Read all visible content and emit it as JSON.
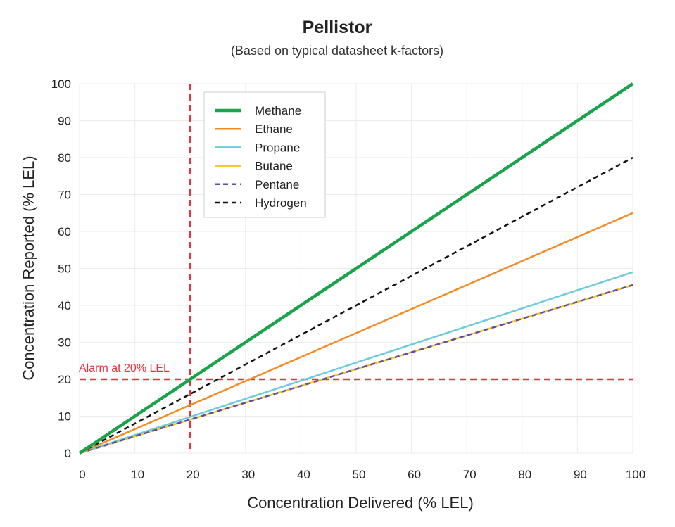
{
  "chart_data": {
    "type": "line",
    "title": "Pellistor",
    "subtitle": "(Based on typical datasheet k-factors)",
    "xlabel": "Concentration Delivered (% LEL)",
    "ylabel": "Concentration Reported (% LEL)",
    "xlim": [
      0,
      100
    ],
    "ylim": [
      0,
      100
    ],
    "xticks": [
      0,
      10,
      20,
      30,
      40,
      50,
      60,
      70,
      80,
      90,
      100
    ],
    "yticks": [
      0,
      10,
      20,
      30,
      40,
      50,
      60,
      70,
      80,
      90,
      100
    ],
    "grid": true,
    "legend_position": "top-left",
    "series": [
      {
        "name": "Methane",
        "x": [
          0,
          100
        ],
        "y": [
          0,
          100
        ],
        "color": "#1aa34a",
        "style": "solid"
      },
      {
        "name": "Ethane",
        "x": [
          0,
          100
        ],
        "y": [
          0,
          65
        ],
        "color": "#f28c28",
        "style": "solid"
      },
      {
        "name": "Propane",
        "x": [
          0,
          100
        ],
        "y": [
          0,
          49
        ],
        "color": "#6ecbd9",
        "style": "solid"
      },
      {
        "name": "Butane",
        "x": [
          0,
          100
        ],
        "y": [
          0,
          45.5
        ],
        "color": "#f5c518",
        "style": "solid"
      },
      {
        "name": "Pentane",
        "x": [
          0,
          100
        ],
        "y": [
          0,
          45.5
        ],
        "color": "#5b4ea6",
        "style": "dashed"
      },
      {
        "name": "Hydrogen",
        "x": [
          0,
          100
        ],
        "y": [
          0,
          80
        ],
        "color": "#111111",
        "style": "dashed"
      }
    ],
    "reference_lines": [
      {
        "orientation": "vertical",
        "value": 20,
        "color": "#e8323c",
        "style": "dashed"
      },
      {
        "orientation": "horizontal",
        "value": 20,
        "color": "#e8323c",
        "style": "dashed",
        "label": "Alarm at 20% LEL"
      }
    ]
  }
}
